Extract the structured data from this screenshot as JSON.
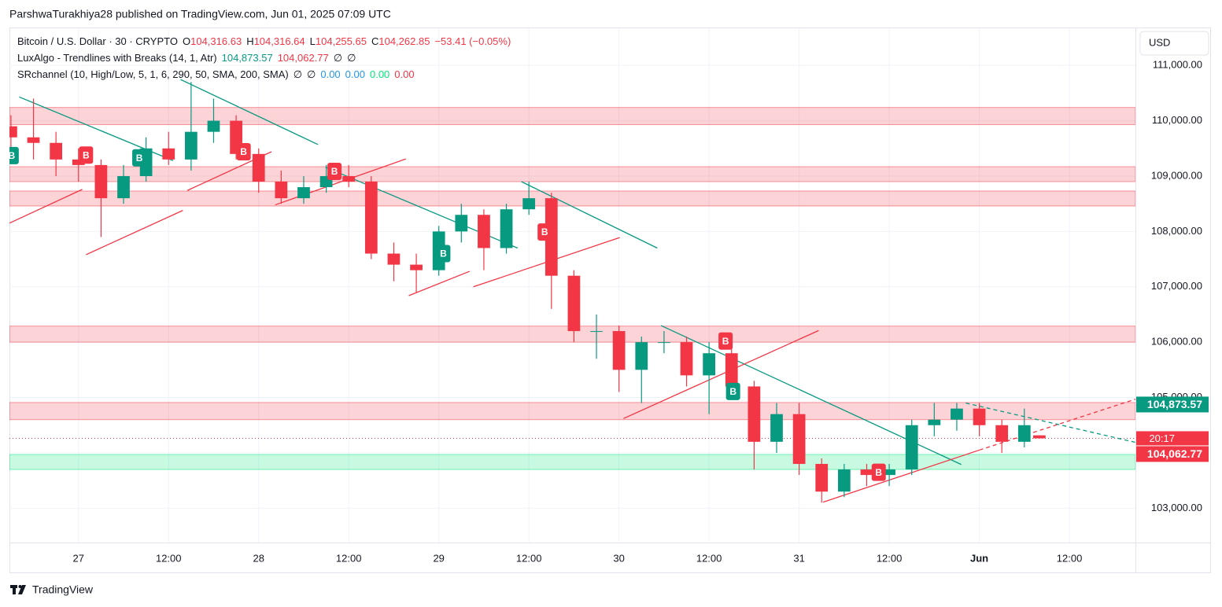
{
  "header": "ParshwaTurakhiya28 published on TradingView.com, Jun 01, 2025 07:09 UTC",
  "footer": "TradingView",
  "chart_data": {
    "type": "candlestick",
    "currency": "USD",
    "legend": [
      [
        {
          "text": "Bitcoin / U.S. Dollar · 30 · CRYPTO",
          "color": "#131722"
        },
        {
          "text": "O",
          "color": "#131722"
        },
        {
          "text": "104,316.63",
          "color": "#f23645"
        },
        {
          "text": "H",
          "color": "#131722"
        },
        {
          "text": "104,316.64",
          "color": "#f23645"
        },
        {
          "text": "L",
          "color": "#131722"
        },
        {
          "text": "104,255.65",
          "color": "#f23645"
        },
        {
          "text": "C",
          "color": "#131722"
        },
        {
          "text": "104,262.85",
          "color": "#f23645"
        },
        {
          "text": "−53.41 (−0.05%)",
          "color": "#f23645"
        }
      ],
      [
        {
          "text": "LuxAlgo - Trendlines with Breaks (14, 1, Atr)",
          "color": "#131722"
        },
        {
          "text": "104,873.57",
          "color": "#089981"
        },
        {
          "text": "104,062.77",
          "color": "#f23645"
        },
        {
          "text": "∅",
          "color": "#131722"
        },
        {
          "text": "∅",
          "color": "#131722"
        }
      ],
      [
        {
          "text": "SRchannel (10, High/Low, 5, 1, 6, 290, 50, SMA, 200, SMA)",
          "color": "#131722"
        },
        {
          "text": "∅",
          "color": "#131722"
        },
        {
          "text": "∅",
          "color": "#131722"
        },
        {
          "text": "0.00",
          "color": "#2196f3"
        },
        {
          "text": "0.00",
          "color": "#2196f3"
        },
        {
          "text": "0.00",
          "color": "#00e676"
        },
        {
          "text": "0.00",
          "color": "#f23645"
        }
      ]
    ],
    "up_color": "#089981",
    "down_color": "#f23645",
    "x": [
      -9,
      -6,
      -3,
      0,
      3,
      6,
      9,
      12,
      15,
      18,
      21,
      24,
      27,
      30,
      33,
      36,
      39,
      42,
      45,
      48,
      51,
      54,
      57,
      60,
      63,
      66,
      69,
      72,
      75,
      78,
      81,
      84,
      87,
      90,
      93,
      96,
      99,
      102,
      105,
      108,
      111,
      114,
      117,
      120,
      123,
      126,
      128
    ],
    "open": [
      109900,
      109700,
      109600,
      109300,
      109200,
      108600,
      109000,
      109500,
      109300,
      109800,
      110000,
      109400,
      108900,
      108600,
      108800,
      109000,
      108900,
      107600,
      107400,
      107300,
      108000,
      108300,
      107700,
      108400,
      108600,
      107200,
      106200,
      106200,
      105500,
      106000,
      106000,
      105400,
      105800,
      105200,
      104200,
      104700,
      103800,
      103300,
      103700,
      103600,
      103700,
      104500,
      104600,
      104800,
      104500,
      104200,
      104316.63
    ],
    "high": [
      110100,
      110400,
      109800,
      109500,
      109300,
      109200,
      109700,
      109800,
      110700,
      110400,
      110100,
      109500,
      109100,
      109000,
      109200,
      109200,
      109000,
      107800,
      107600,
      108100,
      108500,
      108400,
      108500,
      108900,
      108700,
      107300,
      106500,
      106300,
      106100,
      106200,
      106100,
      106000,
      105900,
      105300,
      104900,
      104900,
      103900,
      103800,
      103800,
      103800,
      104600,
      104900,
      104900,
      104900,
      104600,
      104800,
      104316.64
    ],
    "low": [
      109500,
      109300,
      109000,
      108900,
      107900,
      108500,
      108900,
      109200,
      109100,
      109600,
      109300,
      108700,
      108500,
      108500,
      108700,
      108800,
      107500,
      107100,
      106900,
      107200,
      107800,
      107300,
      107600,
      108300,
      106600,
      106000,
      105700,
      105100,
      104900,
      105800,
      105200,
      104700,
      105000,
      103700,
      104000,
      103600,
      103100,
      103200,
      103400,
      103400,
      103600,
      104300,
      104400,
      104300,
      104000,
      104100,
      104255.65
    ],
    "close": [
      109700,
      109600,
      109300,
      109200,
      108600,
      109000,
      109500,
      109300,
      109800,
      110000,
      109400,
      108900,
      108600,
      108800,
      109000,
      108900,
      107600,
      107400,
      107300,
      108000,
      108300,
      107700,
      108400,
      108600,
      107200,
      106200,
      106200,
      105500,
      106000,
      106000,
      105400,
      105800,
      105200,
      104200,
      104700,
      103800,
      103300,
      103700,
      103600,
      103700,
      104500,
      104600,
      104800,
      104500,
      104200,
      104500,
      104262.85
    ],
    "xlim": [
      -9.2,
      140.8
    ],
    "ylim": [
      102380,
      111670
    ],
    "xticks": [
      {
        "value": 0,
        "label": "27"
      },
      {
        "value": 12,
        "label": "12:00"
      },
      {
        "value": 24,
        "label": "28"
      },
      {
        "value": 36,
        "label": "12:00"
      },
      {
        "value": 48,
        "label": "29"
      },
      {
        "value": 60,
        "label": "12:00"
      },
      {
        "value": 72,
        "label": "30"
      },
      {
        "value": 84,
        "label": "12:00"
      },
      {
        "value": 96,
        "label": "31"
      },
      {
        "value": 108,
        "label": "12:00"
      },
      {
        "value": 120,
        "label": "Jun"
      },
      {
        "value": 132,
        "label": "12:00"
      }
    ],
    "yticks": [
      {
        "value": 103000,
        "label": "103,000.00"
      },
      {
        "value": 104000,
        "label": "104,000.00"
      },
      {
        "value": 105000,
        "label": "105,000.00"
      },
      {
        "value": 106000,
        "label": "106,000.00"
      },
      {
        "value": 107000,
        "label": "107,000.00"
      },
      {
        "value": 108000,
        "label": "108,000.00"
      },
      {
        "value": 109000,
        "label": "109,000.00"
      },
      {
        "value": 110000,
        "label": "110,000.00"
      },
      {
        "value": 111000,
        "label": "111,000.00"
      }
    ],
    "grid": true,
    "zones": [
      {
        "low": 109930,
        "high": 110240,
        "color": "#f23645"
      },
      {
        "low": 108900,
        "high": 109170,
        "color": "#f23645"
      },
      {
        "low": 108460,
        "high": 108730,
        "color": "#f23645"
      },
      {
        "low": 106000,
        "high": 106290,
        "color": "#f23645"
      },
      {
        "low": 104600,
        "high": 104910,
        "color": "#f23645"
      },
      {
        "low": 103700,
        "high": 103970,
        "color": "#00e676"
      }
    ],
    "trendlines": [
      {
        "x": [
          -7.9,
          12.6
        ],
        "y": [
          110430,
          109280
        ],
        "color": "#089981",
        "dashed": false
      },
      {
        "x": [
          13.6,
          31.9
        ],
        "y": [
          110745,
          109570
        ],
        "color": "#089981",
        "dashed": false
      },
      {
        "x": [
          32.9,
          58.5
        ],
        "y": [
          109160,
          107700
        ],
        "color": "#089981",
        "dashed": false
      },
      {
        "x": [
          59,
          77.1
        ],
        "y": [
          108900,
          107700
        ],
        "color": "#089981",
        "dashed": false
      },
      {
        "x": [
          77.6,
          117.6
        ],
        "y": [
          106300,
          103790
        ],
        "color": "#089981",
        "dashed": false
      },
      {
        "x": [
          118.2,
          140.8
        ],
        "y": [
          104900,
          104190
        ],
        "color": "#089981",
        "dashed": true
      },
      {
        "x": [
          -9.2,
          0.5
        ],
        "y": [
          108150,
          108760
        ],
        "color": "#f23645",
        "dashed": false
      },
      {
        "x": [
          1.0,
          13.9
        ],
        "y": [
          107580,
          108380
        ],
        "color": "#f23645",
        "dashed": false
      },
      {
        "x": [
          14.5,
          25.7
        ],
        "y": [
          108740,
          109440
        ],
        "color": "#f23645",
        "dashed": false
      },
      {
        "x": [
          26.2,
          43.6
        ],
        "y": [
          108480,
          109310
        ],
        "color": "#f23645",
        "dashed": false
      },
      {
        "x": [
          44,
          52.1
        ],
        "y": [
          106840,
          107280
        ],
        "color": "#f23645",
        "dashed": false
      },
      {
        "x": [
          52.6,
          72.1
        ],
        "y": [
          107000,
          107890
        ],
        "color": "#f23645",
        "dashed": false
      },
      {
        "x": [
          72.6,
          98.6
        ],
        "y": [
          104620,
          106210
        ],
        "color": "#f23645",
        "dashed": false
      },
      {
        "x": [
          99.2,
          120.0
        ],
        "y": [
          103110,
          104050
        ],
        "color": "#f23645",
        "dashed": false
      },
      {
        "x": [
          120.0,
          140.8
        ],
        "y": [
          104050,
          104970
        ],
        "color": "#f23645",
        "dashed": true
      }
    ],
    "breaks": [
      {
        "x": -8.9,
        "y": 109370,
        "label": "B",
        "color": "#089981"
      },
      {
        "x": 1.0,
        "y": 109380,
        "label": "B",
        "color": "#f23645"
      },
      {
        "x": 8.1,
        "y": 109330,
        "label": "B",
        "color": "#089981"
      },
      {
        "x": 22,
        "y": 109440,
        "label": "B",
        "color": "#f23645"
      },
      {
        "x": 34.1,
        "y": 109085,
        "label": "B",
        "color": "#f23645"
      },
      {
        "x": 48.6,
        "y": 107600,
        "label": "B",
        "color": "#089981"
      },
      {
        "x": 62.1,
        "y": 107990,
        "label": "B",
        "color": "#f23645"
      },
      {
        "x": 86.2,
        "y": 106020,
        "label": "B",
        "color": "#f23645"
      },
      {
        "x": 87.2,
        "y": 105110,
        "label": "B",
        "color": "#089981"
      },
      {
        "x": 106.6,
        "y": 103650,
        "label": "B",
        "color": "#f23645"
      }
    ],
    "last_price": 104262.85,
    "countdown": "20:17",
    "price_tags": [
      {
        "value": 104873.57,
        "label": "104,873.57",
        "color": "#089981"
      },
      {
        "value": 104062.77,
        "label": "104,062.77",
        "color": "#f23645"
      }
    ]
  }
}
